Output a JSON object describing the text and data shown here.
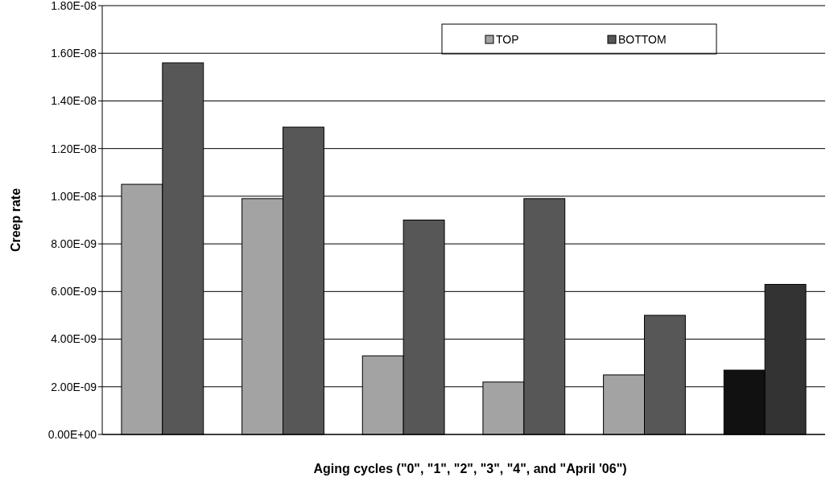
{
  "chart_data": {
    "type": "bar",
    "xlabel": "Aging cycles (\"0\", \"1\", \"2\", \"3\", \"4\", and \"April '06\")",
    "ylabel": "Creep rate",
    "categories": [
      null,
      null,
      null,
      null,
      null,
      null
    ],
    "series": [
      {
        "name": "TOP",
        "color": "#a3a3a3",
        "colors": [
          "#a3a3a3",
          "#a3a3a3",
          "#a3a3a3",
          "#a3a3a3",
          "#a3a3a3",
          "#111111"
        ],
        "values": [
          1.05e-08,
          9.9e-09,
          3.3e-09,
          2.2e-09,
          2.5e-09,
          2.7e-09
        ]
      },
      {
        "name": "BOTTOM",
        "color": "#575757",
        "colors": [
          "#575757",
          "#575757",
          "#575757",
          "#575757",
          "#575757",
          "#333333"
        ],
        "values": [
          1.56e-08,
          1.29e-08,
          9e-09,
          9.9e-09,
          5e-09,
          6.3e-09
        ]
      }
    ],
    "ylim": [
      0,
      1.8e-08
    ],
    "yticks": [
      {
        "value": 0,
        "label": "0.00E+00"
      },
      {
        "value": 2e-09,
        "label": "2.00E-09"
      },
      {
        "value": 4e-09,
        "label": "4.00E-09"
      },
      {
        "value": 6e-09,
        "label": "6.00E-09"
      },
      {
        "value": 8e-09,
        "label": "8.00E-09"
      },
      {
        "value": 1e-08,
        "label": "1.00E-08"
      },
      {
        "value": 1.2e-08,
        "label": "1.20E-08"
      },
      {
        "value": 1.4e-08,
        "label": "1.40E-08"
      },
      {
        "value": 1.6e-08,
        "label": "1.60E-08"
      },
      {
        "value": 1.8e-08,
        "label": "1.80E-08"
      }
    ],
    "grid": "y",
    "legend": "top"
  }
}
